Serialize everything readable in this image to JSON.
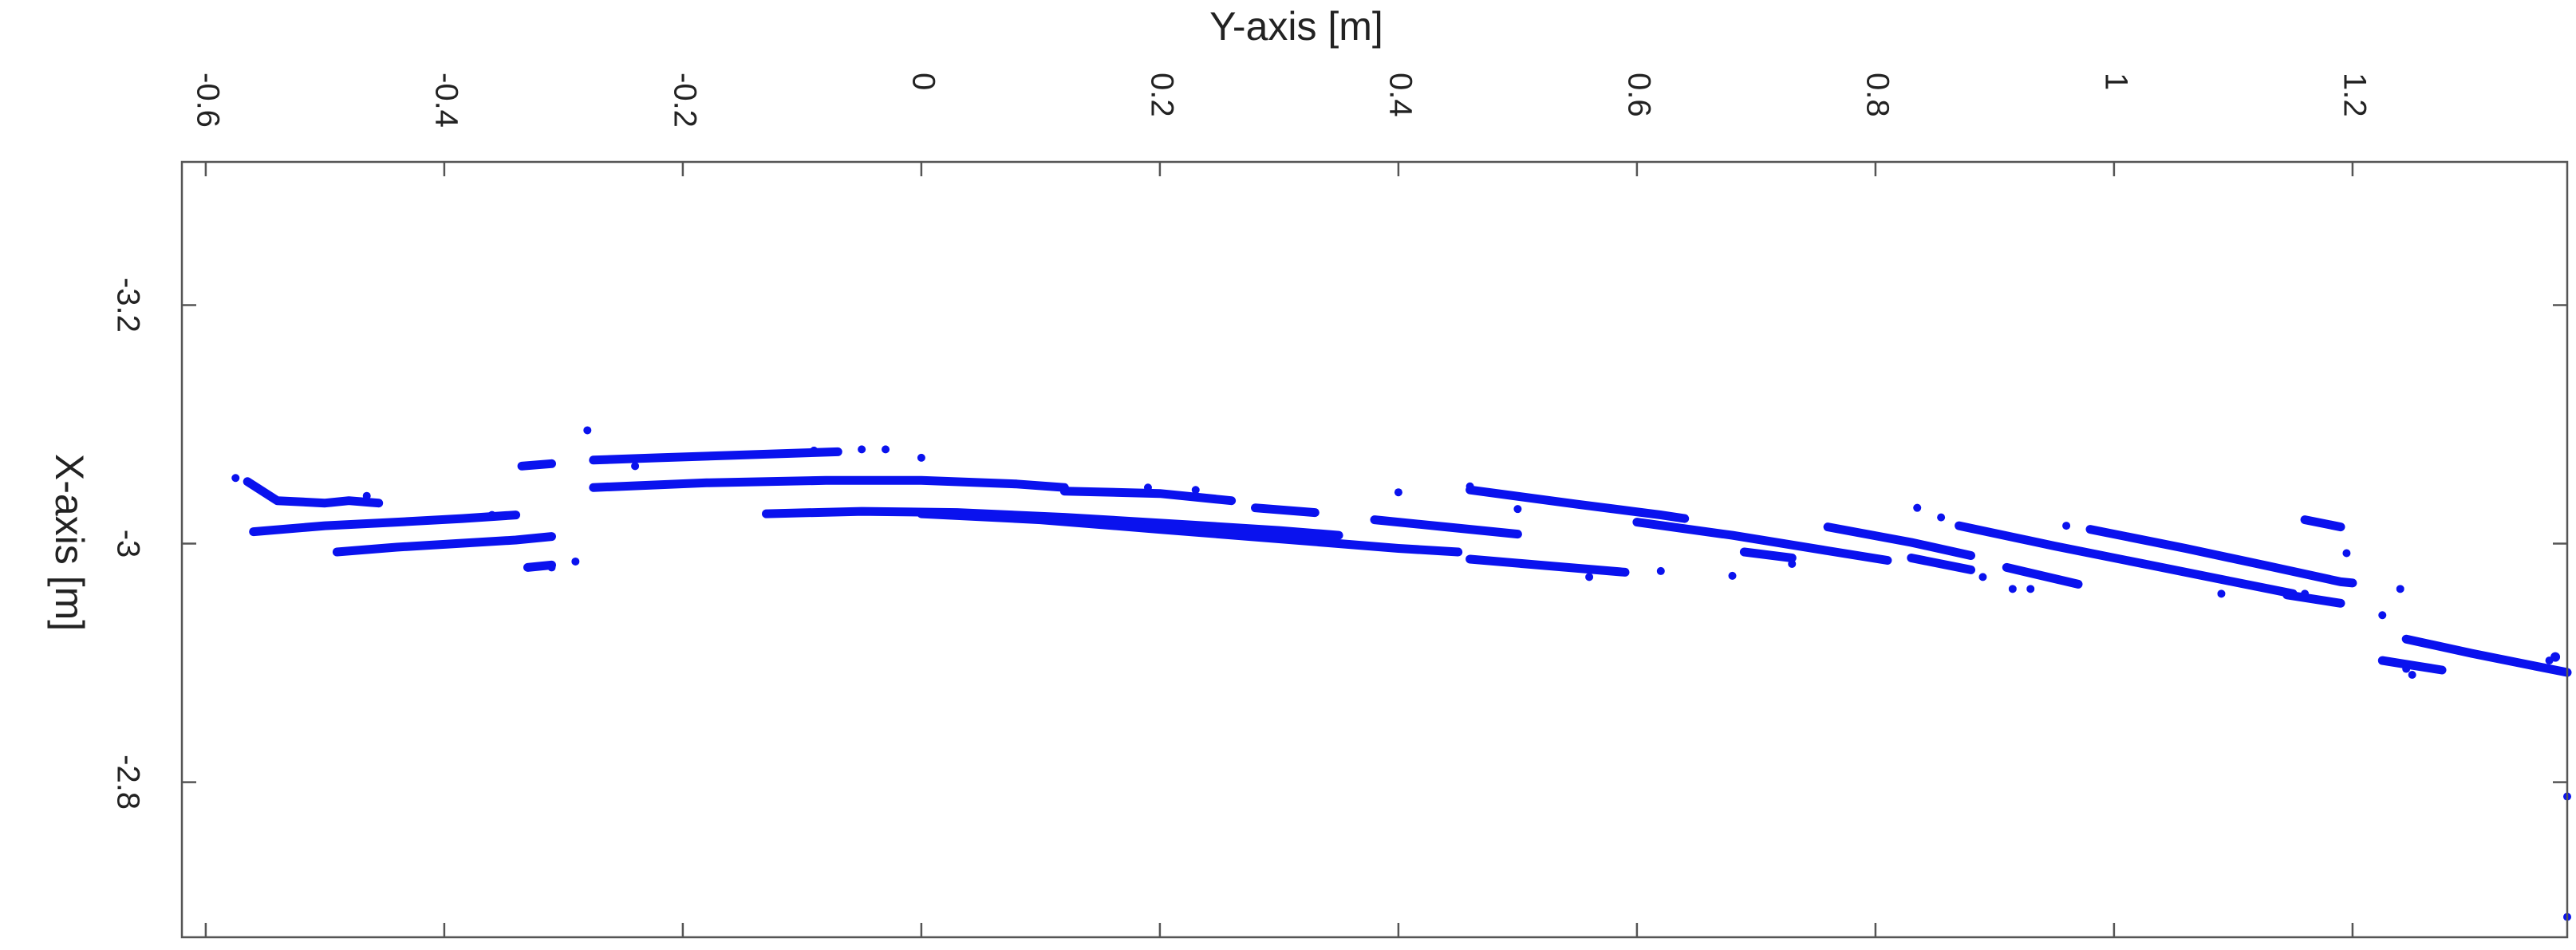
{
  "chart_data": {
    "type": "scatter",
    "title": "",
    "xlabel": "Y-axis [m]",
    "ylabel": "X-axis [m]",
    "x_axis_position": "top",
    "x_tick_rotation": "90",
    "y_tick_rotation": "90",
    "xlim": [
      -0.62,
      1.38
    ],
    "ylim": [
      -3.32,
      -2.67
    ],
    "y_reversed": true,
    "x_ticks": [
      -0.6,
      -0.4,
      -0.2,
      0,
      0.2,
      0.4,
      0.6,
      0.8,
      1.0,
      1.2
    ],
    "x_tick_labels": [
      "-0.6",
      "-0.4",
      "-0.2",
      "0",
      "0.2",
      "0.4",
      "0.6",
      "0.8",
      "1",
      "1.2"
    ],
    "y_ticks": [
      -3.2,
      -3.0,
      -2.8
    ],
    "y_tick_labels": [
      "-3.2",
      "-3",
      "-2.8"
    ],
    "grid": false,
    "legend": "none",
    "marker_color": "#0a12ee",
    "series": [
      {
        "segments": [
          [
            [
              -0.565,
              -3.052
            ],
            [
              -0.54,
              -3.036
            ],
            [
              -0.5,
              -3.034
            ],
            [
              -0.48,
              -3.036
            ],
            [
              -0.455,
              -3.034
            ]
          ],
          [
            [
              -0.56,
              -3.01
            ],
            [
              -0.5,
              -3.015
            ],
            [
              -0.44,
              -3.018
            ],
            [
              -0.385,
              -3.021
            ],
            [
              -0.34,
              -3.024
            ]
          ],
          [
            [
              -0.49,
              -2.993
            ],
            [
              -0.44,
              -2.997
            ],
            [
              -0.39,
              -3.0
            ],
            [
              -0.34,
              -3.003
            ],
            [
              -0.31,
              -3.006
            ]
          ],
          [
            [
              -0.335,
              -3.065
            ],
            [
              -0.31,
              -3.067
            ]
          ],
          [
            [
              -0.33,
              -2.98
            ],
            [
              -0.31,
              -2.982
            ]
          ],
          [
            [
              -0.275,
              -3.07
            ],
            [
              -0.22,
              -3.072
            ],
            [
              -0.16,
              -3.074
            ],
            [
              -0.1,
              -3.076
            ],
            [
              -0.07,
              -3.077
            ]
          ],
          [
            [
              -0.275,
              -3.047
            ],
            [
              -0.18,
              -3.051
            ],
            [
              -0.08,
              -3.053
            ],
            [
              0.0,
              -3.053
            ],
            [
              0.08,
              -3.05
            ],
            [
              0.12,
              -3.047
            ]
          ],
          [
            [
              -0.13,
              -3.025
            ],
            [
              -0.05,
              -3.027
            ],
            [
              0.03,
              -3.026
            ],
            [
              0.12,
              -3.022
            ],
            [
              0.22,
              -3.016
            ],
            [
              0.3,
              -3.011
            ],
            [
              0.35,
              -3.007
            ]
          ],
          [
            [
              0.0,
              -3.025
            ],
            [
              0.1,
              -3.02
            ],
            [
              0.2,
              -3.012
            ],
            [
              0.3,
              -3.004
            ],
            [
              0.4,
              -2.996
            ],
            [
              0.45,
              -2.993
            ]
          ],
          [
            [
              0.12,
              -3.044
            ],
            [
              0.2,
              -3.042
            ],
            [
              0.26,
              -3.036
            ]
          ],
          [
            [
              0.28,
              -3.03
            ],
            [
              0.33,
              -3.026
            ]
          ],
          [
            [
              0.38,
              -3.02
            ],
            [
              0.44,
              -3.014
            ],
            [
              0.5,
              -3.008
            ]
          ],
          [
            [
              0.46,
              -3.045
            ],
            [
              0.55,
              -3.033
            ],
            [
              0.62,
              -3.024
            ],
            [
              0.64,
              -3.021
            ]
          ],
          [
            [
              0.46,
              -2.987
            ],
            [
              0.53,
              -2.981
            ],
            [
              0.59,
              -2.976
            ]
          ],
          [
            [
              0.6,
              -3.018
            ],
            [
              0.68,
              -3.007
            ],
            [
              0.76,
              -2.994
            ],
            [
              0.81,
              -2.986
            ]
          ],
          [
            [
              0.69,
              -2.993
            ],
            [
              0.73,
              -2.988
            ]
          ],
          [
            [
              0.76,
              -3.014
            ],
            [
              0.83,
              -3.001
            ],
            [
              0.88,
              -2.99
            ]
          ],
          [
            [
              0.83,
              -2.988
            ],
            [
              0.88,
              -2.978
            ]
          ],
          [
            [
              0.87,
              -3.015
            ],
            [
              0.95,
              -2.998
            ],
            [
              1.03,
              -2.982
            ],
            [
              1.1,
              -2.968
            ],
            [
              1.15,
              -2.958
            ]
          ],
          [
            [
              0.91,
              -2.98
            ],
            [
              0.97,
              -2.966
            ]
          ],
          [
            [
              0.98,
              -3.012
            ],
            [
              1.06,
              -2.996
            ],
            [
              1.13,
              -2.981
            ],
            [
              1.19,
              -2.968
            ],
            [
              1.2,
              -2.967
            ]
          ],
          [
            [
              1.145,
              -2.957
            ],
            [
              1.19,
              -2.95
            ]
          ],
          [
            [
              1.16,
              -3.02
            ],
            [
              1.19,
              -3.014
            ]
          ],
          [
            [
              1.245,
              -2.92
            ],
            [
              1.3,
              -2.908
            ],
            [
              1.35,
              -2.898
            ],
            [
              1.38,
              -2.892
            ]
          ],
          [
            [
              1.225,
              -2.902
            ],
            [
              1.25,
              -2.898
            ],
            [
              1.275,
              -2.894
            ]
          ],
          [
            [
              1.37,
              -2.905
            ]
          ]
        ],
        "points": [
          [
            -0.575,
            -3.055
          ],
          [
            -0.465,
            -3.04
          ],
          [
            -0.36,
            -3.024
          ],
          [
            -0.31,
            -2.98
          ],
          [
            -0.28,
            -3.095
          ],
          [
            -0.24,
            -3.065
          ],
          [
            -0.09,
            -3.078
          ],
          [
            -0.05,
            -3.079
          ],
          [
            -0.03,
            -3.079
          ],
          [
            0.0,
            -3.072
          ],
          [
            0.19,
            -3.047
          ],
          [
            0.23,
            -3.045
          ],
          [
            0.4,
            -3.043
          ],
          [
            0.46,
            -3.048
          ],
          [
            0.5,
            -3.029
          ],
          [
            0.56,
            -2.972
          ],
          [
            0.62,
            -2.977
          ],
          [
            0.68,
            -2.973
          ],
          [
            0.73,
            -2.983
          ],
          [
            0.835,
            -3.03
          ],
          [
            0.855,
            -3.022
          ],
          [
            0.89,
            -2.972
          ],
          [
            0.915,
            -2.962
          ],
          [
            0.93,
            -2.962
          ],
          [
            0.96,
            -3.015
          ],
          [
            1.09,
            -2.958
          ],
          [
            1.16,
            -2.958
          ],
          [
            1.195,
            -2.992
          ],
          [
            1.225,
            -2.94
          ],
          [
            1.24,
            -2.962
          ],
          [
            1.245,
            -2.895
          ],
          [
            1.25,
            -2.89
          ],
          [
            1.365,
            -2.902
          ],
          [
            1.38,
            -2.788
          ],
          [
            1.38,
            -2.687
          ],
          [
            -0.29,
            -2.985
          ]
        ]
      }
    ]
  }
}
